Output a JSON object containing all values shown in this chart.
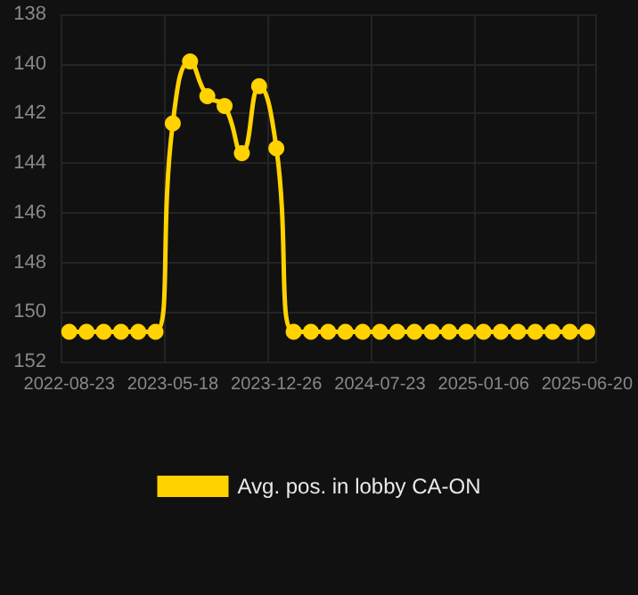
{
  "chart_data": {
    "type": "line",
    "categories": [
      "2022-08-23",
      null,
      null,
      null,
      null,
      null,
      "2023-05-18",
      null,
      null,
      null,
      null,
      null,
      "2023-12-26",
      null,
      null,
      null,
      null,
      null,
      "2024-07-23",
      null,
      null,
      null,
      null,
      null,
      "2025-01-06",
      null,
      null,
      null,
      null,
      null,
      "2025-06-20"
    ],
    "series": [
      {
        "name": "Avg. pos. in lobby CA-ON",
        "color": "#ffd200",
        "values": [
          150.8,
          150.8,
          150.8,
          150.8,
          150.8,
          150.8,
          142.4,
          139.9,
          141.3,
          141.7,
          143.6,
          140.9,
          143.4,
          150.8,
          150.8,
          150.8,
          150.8,
          150.8,
          150.8,
          150.8,
          150.8,
          150.8,
          150.8,
          150.8,
          150.8,
          150.8,
          150.8,
          150.8,
          150.8,
          150.8,
          150.8
        ]
      }
    ],
    "ylim": [
      152,
      138
    ],
    "yticks": [
      138,
      140,
      142,
      144,
      146,
      148,
      150,
      152
    ],
    "grid": true,
    "legend": "bottom",
    "marker": "circle",
    "line_style": "solid"
  }
}
